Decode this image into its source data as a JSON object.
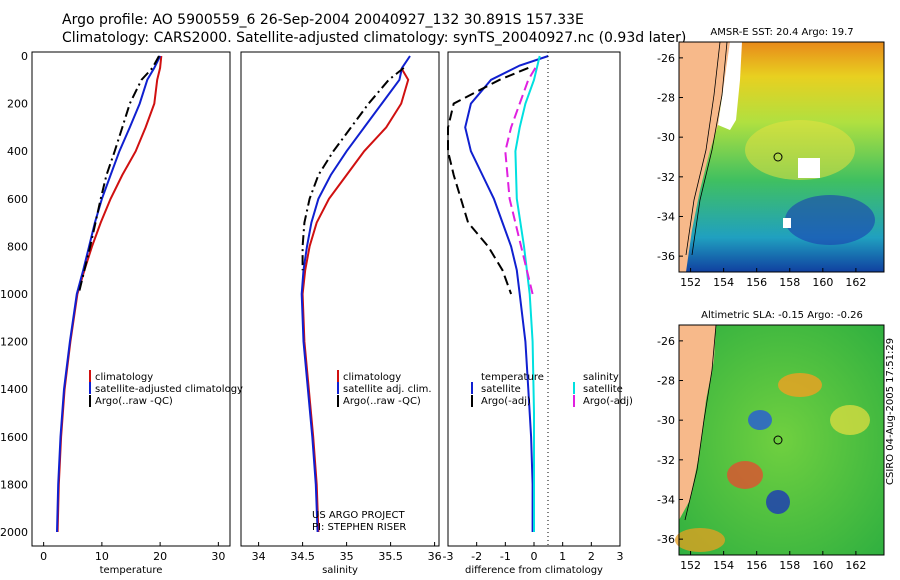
{
  "header": {
    "line1": "Argo profile: AO 5900559_6 26-Sep-2004 20040927_132 30.891S 157.33E",
    "line2": "Climatology: CARS2000. Satellite-adjusted climatology: synTS_20040927.nc (0.93d later)"
  },
  "footer_note": "CSIRO 04-Aug-2005 17:51:29",
  "chart_data": [
    {
      "type": "line",
      "panel": "temperature",
      "xlabel": "temperature",
      "xlim": [
        -2,
        32
      ],
      "ylim": [
        2050,
        0
      ],
      "xticks": [
        0,
        10,
        20,
        30
      ],
      "yticks": [
        0,
        200,
        400,
        600,
        800,
        1000,
        1200,
        1400,
        1600,
        1800,
        2000
      ],
      "series": [
        {
          "name": "climatology",
          "color": "#d01010",
          "dash": "",
          "points": [
            [
              20.2,
              0
            ],
            [
              20,
              50
            ],
            [
              19.5,
              100
            ],
            [
              19,
              200
            ],
            [
              17.5,
              300
            ],
            [
              15.8,
              400
            ],
            [
              13.5,
              500
            ],
            [
              11.5,
              600
            ],
            [
              9.8,
              700
            ],
            [
              8.3,
              800
            ],
            [
              7,
              900
            ],
            [
              5.8,
              1000
            ],
            [
              4.6,
              1200
            ],
            [
              3.6,
              1400
            ],
            [
              3,
              1600
            ],
            [
              2.6,
              1800
            ],
            [
              2.4,
              2000
            ]
          ]
        },
        {
          "name": "satellite-adjusted climatology",
          "color": "#1020d0",
          "dash": "",
          "points": [
            [
              20,
              0
            ],
            [
              19,
              50
            ],
            [
              17.8,
              100
            ],
            [
              16.5,
              200
            ],
            [
              14.8,
              300
            ],
            [
              13,
              400
            ],
            [
              11.5,
              500
            ],
            [
              10,
              600
            ],
            [
              8.8,
              700
            ],
            [
              7.8,
              800
            ],
            [
              6.8,
              900
            ],
            [
              5.7,
              1000
            ],
            [
              4.5,
              1200
            ],
            [
              3.5,
              1400
            ],
            [
              2.9,
              1600
            ],
            [
              2.5,
              1800
            ],
            [
              2.3,
              2000
            ]
          ]
        },
        {
          "name": "Argo(..raw -QC)",
          "color": "#000000",
          "dash": "10,4,2,4",
          "points": [
            [
              19.8,
              0
            ],
            [
              18.7,
              50
            ],
            [
              16.8,
              100
            ],
            [
              14.8,
              200
            ],
            [
              13.5,
              300
            ],
            [
              12.2,
              400
            ],
            [
              10.8,
              500
            ],
            [
              9.8,
              600
            ],
            [
              8.9,
              700
            ],
            [
              8,
              800
            ],
            [
              7,
              900
            ],
            [
              6,
              1000
            ]
          ]
        }
      ],
      "legend": [
        "climatology",
        "satellite-adjusted climatology",
        "Argo(..raw -QC)"
      ]
    },
    {
      "type": "line",
      "panel": "salinity",
      "xlabel": "salinity",
      "xlim": [
        33.8,
        36.05
      ],
      "ylim": [
        2050,
        0
      ],
      "xticks": [
        34,
        34.5,
        35,
        35.5,
        36
      ],
      "xticklabels": [
        "34",
        "34.5",
        "35",
        "35.5",
        "36"
      ],
      "series": [
        {
          "name": "climatology",
          "color": "#d01010",
          "dash": "",
          "points": [
            [
              35.62,
              50
            ],
            [
              35.7,
              100
            ],
            [
              35.62,
              200
            ],
            [
              35.45,
              300
            ],
            [
              35.2,
              400
            ],
            [
              35,
              500
            ],
            [
              34.8,
              600
            ],
            [
              34.66,
              700
            ],
            [
              34.58,
              800
            ],
            [
              34.53,
              900
            ],
            [
              34.5,
              1000
            ],
            [
              34.52,
              1200
            ],
            [
              34.57,
              1400
            ],
            [
              34.62,
              1600
            ],
            [
              34.66,
              1800
            ],
            [
              34.68,
              2000
            ]
          ]
        },
        {
          "name": "satellite adj. clim.",
          "color": "#1020d0",
          "dash": "",
          "points": [
            [
              35.72,
              0
            ],
            [
              35.63,
              50
            ],
            [
              35.6,
              100
            ],
            [
              35.4,
              200
            ],
            [
              35.2,
              300
            ],
            [
              35,
              400
            ],
            [
              34.82,
              500
            ],
            [
              34.68,
              600
            ],
            [
              34.6,
              700
            ],
            [
              34.55,
              800
            ],
            [
              34.51,
              900
            ],
            [
              34.49,
              1000
            ],
            [
              34.51,
              1200
            ],
            [
              34.56,
              1400
            ],
            [
              34.61,
              1600
            ],
            [
              34.65,
              1800
            ],
            [
              34.67,
              2000
            ]
          ]
        },
        {
          "name": "Argo(..raw -QC)",
          "color": "#000000",
          "dash": "10,4,2,4",
          "points": [
            [
              35.65,
              50
            ],
            [
              35.48,
              100
            ],
            [
              35.25,
              200
            ],
            [
              35.05,
              300
            ],
            [
              34.85,
              400
            ],
            [
              34.68,
              500
            ],
            [
              34.58,
              600
            ],
            [
              34.52,
              700
            ],
            [
              34.5,
              800
            ],
            [
              34.5,
              900
            ]
          ]
        }
      ],
      "legend": [
        "climatology",
        "satellite adj. clim.",
        "Argo(..raw -QC)"
      ],
      "credit": [
        "US ARGO PROJECT",
        "PI: STEPHEN RISER"
      ]
    },
    {
      "type": "line",
      "panel": "difference",
      "xlabel": "difference from climatology",
      "xlim": [
        -3,
        3
      ],
      "ylim": [
        2050,
        0
      ],
      "xticks": [
        -3,
        -2,
        -1,
        0,
        1,
        2,
        3
      ],
      "series": [
        {
          "name": "temperature satellite",
          "color": "#1020d0",
          "dash": "",
          "points": [
            [
              0.5,
              0
            ],
            [
              -0.5,
              40
            ],
            [
              -1.5,
              100
            ],
            [
              -2.2,
              200
            ],
            [
              -2.4,
              300
            ],
            [
              -2.2,
              400
            ],
            [
              -1.8,
              500
            ],
            [
              -1.4,
              600
            ],
            [
              -1.1,
              700
            ],
            [
              -0.8,
              800
            ],
            [
              -0.6,
              900
            ],
            [
              -0.5,
              1000
            ],
            [
              -0.3,
              1200
            ],
            [
              -0.2,
              1400
            ],
            [
              -0.1,
              1600
            ],
            [
              -0.05,
              1800
            ],
            [
              -0.05,
              2000
            ]
          ]
        },
        {
          "name": "temperature Argo(-adj)",
          "color": "#000000",
          "dash": "10,5",
          "points": [
            [
              -0.2,
              50
            ],
            [
              -1.2,
              100
            ],
            [
              -2.8,
              200
            ],
            [
              -3,
              300
            ],
            [
              -3,
              400
            ],
            [
              -2.8,
              500
            ],
            [
              -2.3,
              700
            ],
            [
              -1.6,
              800
            ],
            [
              -1.1,
              900
            ],
            [
              -0.8,
              1000
            ]
          ]
        },
        {
          "name": "salinity satellite",
          "color": "#00e0e0",
          "dash": "",
          "points": [
            [
              0.2,
              0
            ],
            [
              0,
              100
            ],
            [
              -0.3,
              200
            ],
            [
              -0.5,
              300
            ],
            [
              -0.65,
              400
            ],
            [
              -0.6,
              600
            ],
            [
              -0.35,
              800
            ],
            [
              -0.15,
              1000
            ],
            [
              -0.05,
              1200
            ],
            [
              0,
              1500
            ],
            [
              0,
              1800
            ],
            [
              0,
              2000
            ]
          ]
        },
        {
          "name": "salinity Argo(-adj)",
          "color": "#e020e0",
          "dash": "10,5",
          "points": [
            [
              0.05,
              50
            ],
            [
              -0.2,
              100
            ],
            [
              -0.5,
              200
            ],
            [
              -0.8,
              300
            ],
            [
              -1,
              400
            ],
            [
              -0.85,
              600
            ],
            [
              -0.45,
              800
            ],
            [
              -0.05,
              1000
            ]
          ]
        }
      ],
      "legend_left_title": "temperature",
      "legend_left": [
        "satellite",
        "Argo(-adj)"
      ],
      "legend_right_title": "salinity",
      "legend_right": [
        "satellite",
        "Argo(-adj)"
      ]
    },
    {
      "type": "heatmap",
      "panel": "sst-map",
      "title": "AMSR-E SST: 20.4 Argo: 19.7",
      "xticks": [
        152,
        154,
        156,
        158,
        160,
        162
      ],
      "yticks": [
        -26,
        -28,
        -30,
        -32,
        -34,
        -36
      ]
    },
    {
      "type": "heatmap",
      "panel": "sla-map",
      "title": "Altimetric SLA: -0.15 Argo: -0.26",
      "xticks": [
        152,
        154,
        156,
        158,
        160,
        162
      ],
      "yticks": [
        -26,
        -28,
        -30,
        -32,
        -34,
        -36
      ]
    }
  ]
}
